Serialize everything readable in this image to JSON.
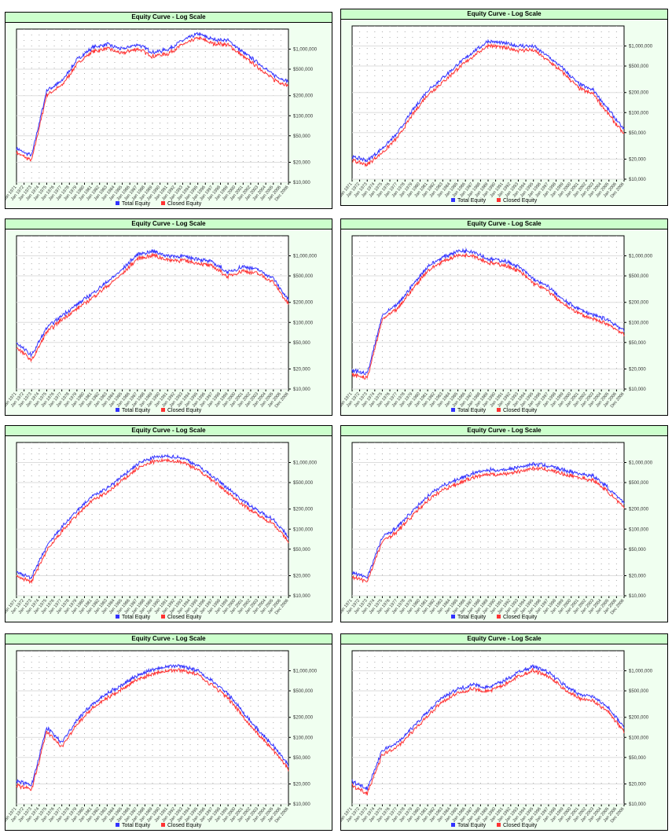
{
  "chart_data": [
    {
      "type": "line",
      "title": "Equity Curve - Log Scale",
      "scale": "log",
      "ylim": [
        10000,
        2000000
      ],
      "yticks": [
        "$10,000",
        "$20,000",
        "$50,000",
        "$100,000",
        "$200,000",
        "$500,000",
        "$1,000,000"
      ],
      "series": [
        {
          "name": "Total Equity",
          "color": "#3333ff",
          "values": [
            32000,
            25000,
            240000,
            330000,
            692000,
            1050000,
            1180000,
            1000000,
            1180000,
            900000,
            980000,
            1350000,
            1700000,
            1400000,
            1350000,
            900000,
            620000,
            407000,
            330000
          ]
        },
        {
          "name": "Closed Equity",
          "color": "#ff3333",
          "values": [
            28000,
            21000,
            205000,
            285000,
            600000,
            910000,
            1020000,
            860000,
            1020000,
            780000,
            850000,
            1170000,
            1470000,
            1210000,
            1170000,
            780000,
            535000,
            350000,
            285000
          ]
        }
      ]
    },
    {
      "type": "line",
      "title": "Equity Curve - Log Scale",
      "scale": "log",
      "ylim": [
        10000,
        2000000
      ],
      "yticks": [
        "$10,000",
        "$20,000",
        "$50,000",
        "$100,000",
        "$200,000",
        "$500,000",
        "$1,000,000"
      ],
      "series": [
        {
          "name": "Total Equity",
          "color": "#3333ff",
          "values": [
            22000,
            19000,
            29000,
            49000,
            108000,
            215000,
            330000,
            530000,
            810000,
            1180000,
            1100000,
            1000000,
            1000000,
            692000,
            450000,
            270000,
            215000,
            108000,
            55000
          ]
        },
        {
          "name": "Closed Equity",
          "color": "#ff3333",
          "values": [
            19000,
            16500,
            25000,
            42000,
            93000,
            185000,
            285000,
            460000,
            700000,
            1020000,
            950000,
            865000,
            865000,
            600000,
            390000,
            233000,
            186000,
            93000,
            47000
          ]
        }
      ]
    },
    {
      "type": "line",
      "title": "Equity Curve - Log Scale",
      "scale": "log",
      "ylim": [
        10000,
        2000000
      ],
      "yticks": [
        "$10,000",
        "$20,000",
        "$50,000",
        "$100,000",
        "$200,000",
        "$500,000",
        "$1,000,000"
      ],
      "series": [
        {
          "name": "Total Equity",
          "color": "#3333ff",
          "values": [
            49000,
            32000,
            83000,
            127000,
            185000,
            270000,
            407000,
            620000,
            1050000,
            1180000,
            1000000,
            980000,
            900000,
            800000,
            560000,
            692000,
            620000,
            460000,
            215000
          ]
        },
        {
          "name": "Closed Equity",
          "color": "#ff3333",
          "values": [
            42000,
            27000,
            72000,
            110000,
            160000,
            233000,
            350000,
            535000,
            910000,
            1020000,
            865000,
            850000,
            780000,
            690000,
            485000,
            600000,
            535000,
            400000,
            186000
          ]
        }
      ]
    },
    {
      "type": "line",
      "title": "Equity Curve - Log Scale",
      "scale": "log",
      "ylim": [
        10000,
        2000000
      ],
      "yticks": [
        "$10,000",
        "$20,000",
        "$50,000",
        "$100,000",
        "$200,000",
        "$500,000",
        "$1,000,000"
      ],
      "series": [
        {
          "name": "Total Equity",
          "color": "#3333ff",
          "values": [
            19000,
            17000,
            127000,
            185000,
            365000,
            692000,
            950000,
            1180000,
            1180000,
            900000,
            850000,
            692000,
            450000,
            340000,
            215000,
            160000,
            127000,
            108000,
            75000
          ]
        },
        {
          "name": "Closed Equity",
          "color": "#ff3333",
          "values": [
            16500,
            14500,
            110000,
            160000,
            315000,
            600000,
            820000,
            1020000,
            1020000,
            780000,
            735000,
            600000,
            390000,
            294000,
            186000,
            138000,
            110000,
            93000,
            65000
          ]
        }
      ]
    },
    {
      "type": "line",
      "title": "Equity Curve - Log Scale",
      "scale": "log",
      "ylim": [
        10000,
        2000000
      ],
      "yticks": [
        "$10,000",
        "$20,000",
        "$50,000",
        "$100,000",
        "$200,000",
        "$500,000",
        "$1,000,000"
      ],
      "series": [
        {
          "name": "Total Equity",
          "color": "#3333ff",
          "values": [
            22000,
            19000,
            55000,
            108000,
            185000,
            313000,
            407000,
            620000,
            950000,
            1180000,
            1250000,
            1180000,
            900000,
            620000,
            407000,
            270000,
            185000,
            141000,
            75000
          ]
        },
        {
          "name": "Closed Equity",
          "color": "#ff3333",
          "values": [
            19000,
            16500,
            47000,
            93000,
            160000,
            270000,
            350000,
            535000,
            820000,
            1020000,
            1080000,
            1020000,
            780000,
            535000,
            350000,
            233000,
            160000,
            122000,
            65000
          ]
        }
      ]
    },
    {
      "type": "line",
      "title": "Equity Curve - Log Scale",
      "scale": "log",
      "ylim": [
        10000,
        2000000
      ],
      "yticks": [
        "$10,000",
        "$20,000",
        "$50,000",
        "$100,000",
        "$200,000",
        "$500,000",
        "$1,000,000"
      ],
      "series": [
        {
          "name": "Total Equity",
          "color": "#3333ff",
          "values": [
            22000,
            19000,
            75000,
            108000,
            185000,
            313000,
            450000,
            560000,
            692000,
            770000,
            770000,
            850000,
            950000,
            900000,
            770000,
            692000,
            620000,
            407000,
            240000
          ]
        },
        {
          "name": "Closed Equity",
          "color": "#ff3333",
          "values": [
            19000,
            16500,
            65000,
            93000,
            160000,
            270000,
            390000,
            485000,
            600000,
            665000,
            665000,
            735000,
            820000,
            780000,
            665000,
            600000,
            535000,
            350000,
            207000
          ]
        }
      ]
    },
    {
      "type": "line",
      "title": "Equity Curve - Log Scale",
      "scale": "log",
      "ylim": [
        10000,
        2000000
      ],
      "yticks": [
        "$10,000",
        "$20,000",
        "$50,000",
        "$100,000",
        "$200,000",
        "$500,000",
        "$1,000,000"
      ],
      "series": [
        {
          "name": "Total Equity",
          "color": "#3333ff",
          "values": [
            22000,
            19000,
            141000,
            83000,
            185000,
            313000,
            450000,
            620000,
            850000,
            1050000,
            1180000,
            1180000,
            1000000,
            692000,
            450000,
            240000,
            127000,
            75000,
            38000
          ]
        },
        {
          "name": "Closed Equity",
          "color": "#ff3333",
          "values": [
            19000,
            16500,
            122000,
            72000,
            160000,
            270000,
            390000,
            535000,
            735000,
            910000,
            1020000,
            1020000,
            865000,
            600000,
            390000,
            207000,
            110000,
            65000,
            33000
          ]
        }
      ]
    },
    {
      "type": "line",
      "title": "Equity Curve - Log Scale",
      "scale": "log",
      "ylim": [
        10000,
        2000000
      ],
      "yticks": [
        "$10,000",
        "$20,000",
        "$50,000",
        "$100,000",
        "$200,000",
        "$500,000",
        "$1,000,000"
      ],
      "series": [
        {
          "name": "Total Equity",
          "color": "#3333ff",
          "values": [
            22000,
            17000,
            64000,
            83000,
            141000,
            240000,
            407000,
            530000,
            620000,
            560000,
            692000,
            950000,
            1180000,
            950000,
            620000,
            450000,
            407000,
            270000,
            141000
          ]
        },
        {
          "name": "Closed Equity",
          "color": "#ff3333",
          "values": [
            19000,
            14500,
            55000,
            72000,
            122000,
            207000,
            350000,
            460000,
            535000,
            485000,
            600000,
            820000,
            1020000,
            820000,
            535000,
            390000,
            350000,
            233000,
            122000
          ]
        }
      ]
    }
  ],
  "x_tick_labels": [
    "Jan 1971",
    "Jan 1972",
    "Jan 1973",
    "Jan 1974",
    "Jan 1975",
    "Jan 1976",
    "Jan 1977",
    "Jan 1978",
    "Jan 1979",
    "Jan 1980",
    "Jan 1981",
    "Jan 1982",
    "Jan 1983",
    "Jan 1984",
    "Jan 1985",
    "Jan 1986",
    "Jan 1987",
    "Jan 1988",
    "Jan 1989",
    "Jan 1990",
    "Jan 1991",
    "Jan 1992",
    "Jan 1993",
    "Jan 1994",
    "Jan 1995",
    "Jan 1996",
    "Jan 1997",
    "Jan 1998",
    "Jan 1999",
    "Jan 2000",
    "Jan 2001",
    "Jan 2002",
    "Jan 2003",
    "Jan 2004",
    "Jan 2005",
    "Jan 2006",
    "Dec 2006"
  ],
  "colors": {
    "title_bar": "#ccffcc",
    "panel_bg": "#f0fff0",
    "total": "#3333ff",
    "closed": "#ff3333"
  }
}
